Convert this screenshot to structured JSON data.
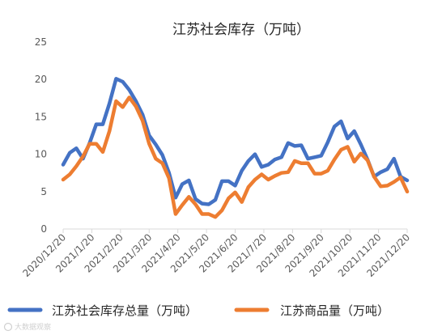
{
  "chart_data": {
    "type": "line",
    "title": "江苏社会库存（万吨）",
    "xlabel": "",
    "ylabel": "",
    "ylim": [
      0,
      25
    ],
    "yticks": [
      "0",
      "5",
      "10",
      "15",
      "20",
      "25"
    ],
    "xticks": [
      "2020/12/20",
      "2021/1/20",
      "2021/2/20",
      "2021/3/20",
      "2021/4/20",
      "2021/5/20",
      "2021/6/20",
      "2021/7/20",
      "2021/8/20",
      "2021/9/20",
      "2021/10/20",
      "2021/11/20",
      "2021/12/20"
    ],
    "grid": false,
    "legend": "bottom",
    "x": [
      "2020/12/20",
      "2020/12/27",
      "2021/1/3",
      "2021/1/10",
      "2021/1/17",
      "2021/1/24",
      "2021/1/31",
      "2021/2/7",
      "2021/2/14",
      "2021/2/21",
      "2021/2/28",
      "2021/3/7",
      "2021/3/14",
      "2021/3/21",
      "2021/3/28",
      "2021/4/4",
      "2021/4/11",
      "2021/4/18",
      "2021/4/25",
      "2021/5/2",
      "2021/5/9",
      "2021/5/16",
      "2021/5/23",
      "2021/5/30",
      "2021/6/6",
      "2021/6/13",
      "2021/6/20",
      "2021/6/27",
      "2021/7/4",
      "2021/7/11",
      "2021/7/18",
      "2021/7/25",
      "2021/8/1",
      "2021/8/8",
      "2021/8/15",
      "2021/8/22",
      "2021/8/29",
      "2021/9/5",
      "2021/9/12",
      "2021/9/19",
      "2021/9/26",
      "2021/10/3",
      "2021/10/10",
      "2021/10/17",
      "2021/10/24",
      "2021/10/31",
      "2021/11/7",
      "2021/11/14",
      "2021/11/21",
      "2021/11/28",
      "2021/12/5",
      "2021/12/12",
      "2021/12/19"
    ],
    "series": [
      {
        "name": "江苏社会库存总量（万吨）",
        "color": "#4472C4",
        "values": [
          8.6,
          10.2,
          10.8,
          9.4,
          11.5,
          14.0,
          14.0,
          16.8,
          20.1,
          19.7,
          18.6,
          17.1,
          15.3,
          12.5,
          11.3,
          9.9,
          7.5,
          4.2,
          6.0,
          6.5,
          4.0,
          3.4,
          3.3,
          3.9,
          6.4,
          6.4,
          5.8,
          7.8,
          9.1,
          10.0,
          8.3,
          8.6,
          9.3,
          9.6,
          11.5,
          11.1,
          11.2,
          9.4,
          9.6,
          9.8,
          11.6,
          13.7,
          14.4,
          12.1,
          13.1,
          11.3,
          9.3,
          7.0,
          7.6,
          8.0,
          9.4,
          7.0,
          6.5
        ]
      },
      {
        "name": "江苏商品量（万吨）",
        "color": "#ED7D31",
        "values": [
          6.6,
          7.3,
          8.4,
          9.7,
          11.4,
          11.4,
          10.3,
          13.1,
          17.1,
          16.3,
          17.6,
          16.4,
          14.5,
          11.4,
          9.4,
          8.8,
          6.8,
          2.0,
          3.2,
          4.3,
          3.3,
          2.0,
          2.0,
          1.6,
          2.5,
          4.1,
          4.9,
          3.6,
          5.6,
          6.6,
          7.3,
          6.6,
          7.1,
          7.5,
          7.6,
          9.1,
          8.8,
          8.8,
          7.4,
          7.4,
          7.8,
          9.3,
          10.6,
          11.0,
          9.0,
          10.1,
          9.2,
          7.0,
          5.7,
          5.8,
          6.3,
          6.9,
          5.0
        ]
      }
    ]
  },
  "watermark": "大数据观察"
}
